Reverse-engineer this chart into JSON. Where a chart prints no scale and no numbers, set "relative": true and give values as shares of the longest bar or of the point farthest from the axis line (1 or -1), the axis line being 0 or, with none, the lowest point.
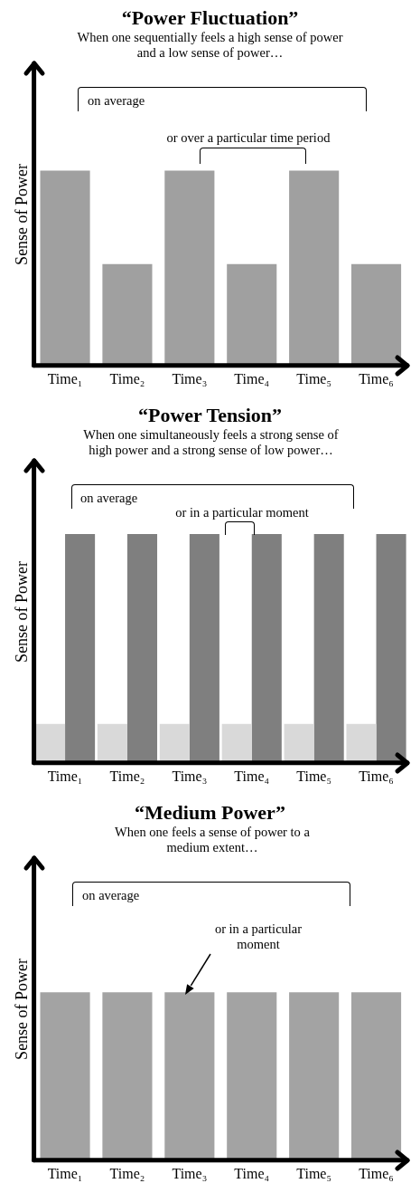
{
  "chart_data": [
    {
      "type": "bar",
      "title": "“Power Fluctuation”",
      "subtitle": "When one sequentially feels a high sense of power and a low sense of power…",
      "ylabel": "Sense of Power",
      "categories": [
        "Time₁",
        "Time₂",
        "Time₃",
        "Time₄",
        "Time₅",
        "Time₆"
      ],
      "relative": true,
      "values": [
        1,
        0.52,
        1,
        0.52,
        1,
        0.52
      ],
      "color": "#a0a0a0",
      "annotations": [
        "on average",
        "or over a particular time period"
      ]
    },
    {
      "type": "bar",
      "title": "“Power Tension”",
      "subtitle": "When one simultaneously feels a strong sense of high power and a strong sense of low power…",
      "ylabel": "Sense of Power",
      "categories": [
        "Time₁",
        "Time₂",
        "Time₃",
        "Time₄",
        "Time₅",
        "Time₆"
      ],
      "relative": true,
      "series": [
        {
          "color": "#d9d9d9",
          "values": [
            0.17,
            0.17,
            0.17,
            0.17,
            0.17,
            0.17
          ]
        },
        {
          "color": "#7f7f7f",
          "values": [
            1,
            1,
            1,
            1,
            1,
            1
          ]
        }
      ],
      "annotations": [
        "on average",
        "or in a particular moment"
      ]
    },
    {
      "type": "bar",
      "title": "“Medium Power”",
      "subtitle": "When one feels a sense of power to a medium extent…",
      "ylabel": "Sense of Power",
      "categories": [
        "Time₁",
        "Time₂",
        "Time₃",
        "Time₄",
        "Time₅",
        "Time₆"
      ],
      "relative": true,
      "values": [
        1,
        1,
        1,
        1,
        1,
        1
      ],
      "color": "#a3a3a3",
      "annotations": [
        "on average",
        "or in a particular moment"
      ]
    }
  ]
}
